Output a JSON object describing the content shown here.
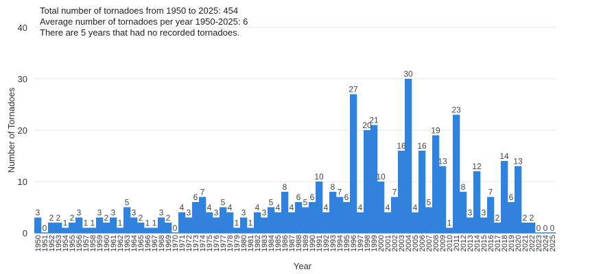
{
  "chart_data": {
    "type": "bar",
    "annotations": [
      "Total number of tornadoes from 1950 to 2025: 454",
      "Average number of tornadoes per year 1950-2025: 6",
      "There are 5 years that had no recorded tornadoes."
    ],
    "xlabel": "Year",
    "ylabel": "Number of Tornadoes",
    "ylim": [
      0,
      40
    ],
    "yticks": [
      0,
      10,
      20,
      30,
      40
    ],
    "grid": true,
    "bar_color": "#3182dc",
    "categories": [
      "1950",
      "1951",
      "1952",
      "1953",
      "1954",
      "1955",
      "1956",
      "1957",
      "1958",
      "1959",
      "1960",
      "1961",
      "1962",
      "1963",
      "1964",
      "1965",
      "1966",
      "1967",
      "1968",
      "1969",
      "1970",
      "1971",
      "1972",
      "1973",
      "1974",
      "1975",
      "1976",
      "1977",
      "1978",
      "1979",
      "1980",
      "1981",
      "1982",
      "1983",
      "1984",
      "1985",
      "1986",
      "1987",
      "1988",
      "1989",
      "1990",
      "1991",
      "1992",
      "1993",
      "1994",
      "1995",
      "1996",
      "1997",
      "1998",
      "1999",
      "2000",
      "2001",
      "2002",
      "2003",
      "2004",
      "2005",
      "2006",
      "2007",
      "2008",
      "2009",
      "2010",
      "2011",
      "2012",
      "2013",
      "2014",
      "2015",
      "2016",
      "2017",
      "2018",
      "2019",
      "2020",
      "2021",
      "2022",
      "2023",
      "2024",
      "2025"
    ],
    "values": [
      3,
      0,
      2,
      2,
      1,
      2,
      3,
      1,
      1,
      3,
      2,
      3,
      1,
      5,
      3,
      2,
      1,
      1,
      3,
      2,
      0,
      4,
      3,
      6,
      7,
      4,
      3,
      5,
      4,
      1,
      3,
      1,
      4,
      3,
      5,
      4,
      8,
      4,
      6,
      5,
      6,
      10,
      4,
      8,
      7,
      6,
      27,
      4,
      20,
      21,
      10,
      4,
      7,
      16,
      30,
      4,
      16,
      5,
      19,
      13,
      1,
      23,
      8,
      3,
      12,
      3,
      7,
      2,
      14,
      6,
      13,
      2,
      2,
      0,
      0,
      0
    ]
  }
}
